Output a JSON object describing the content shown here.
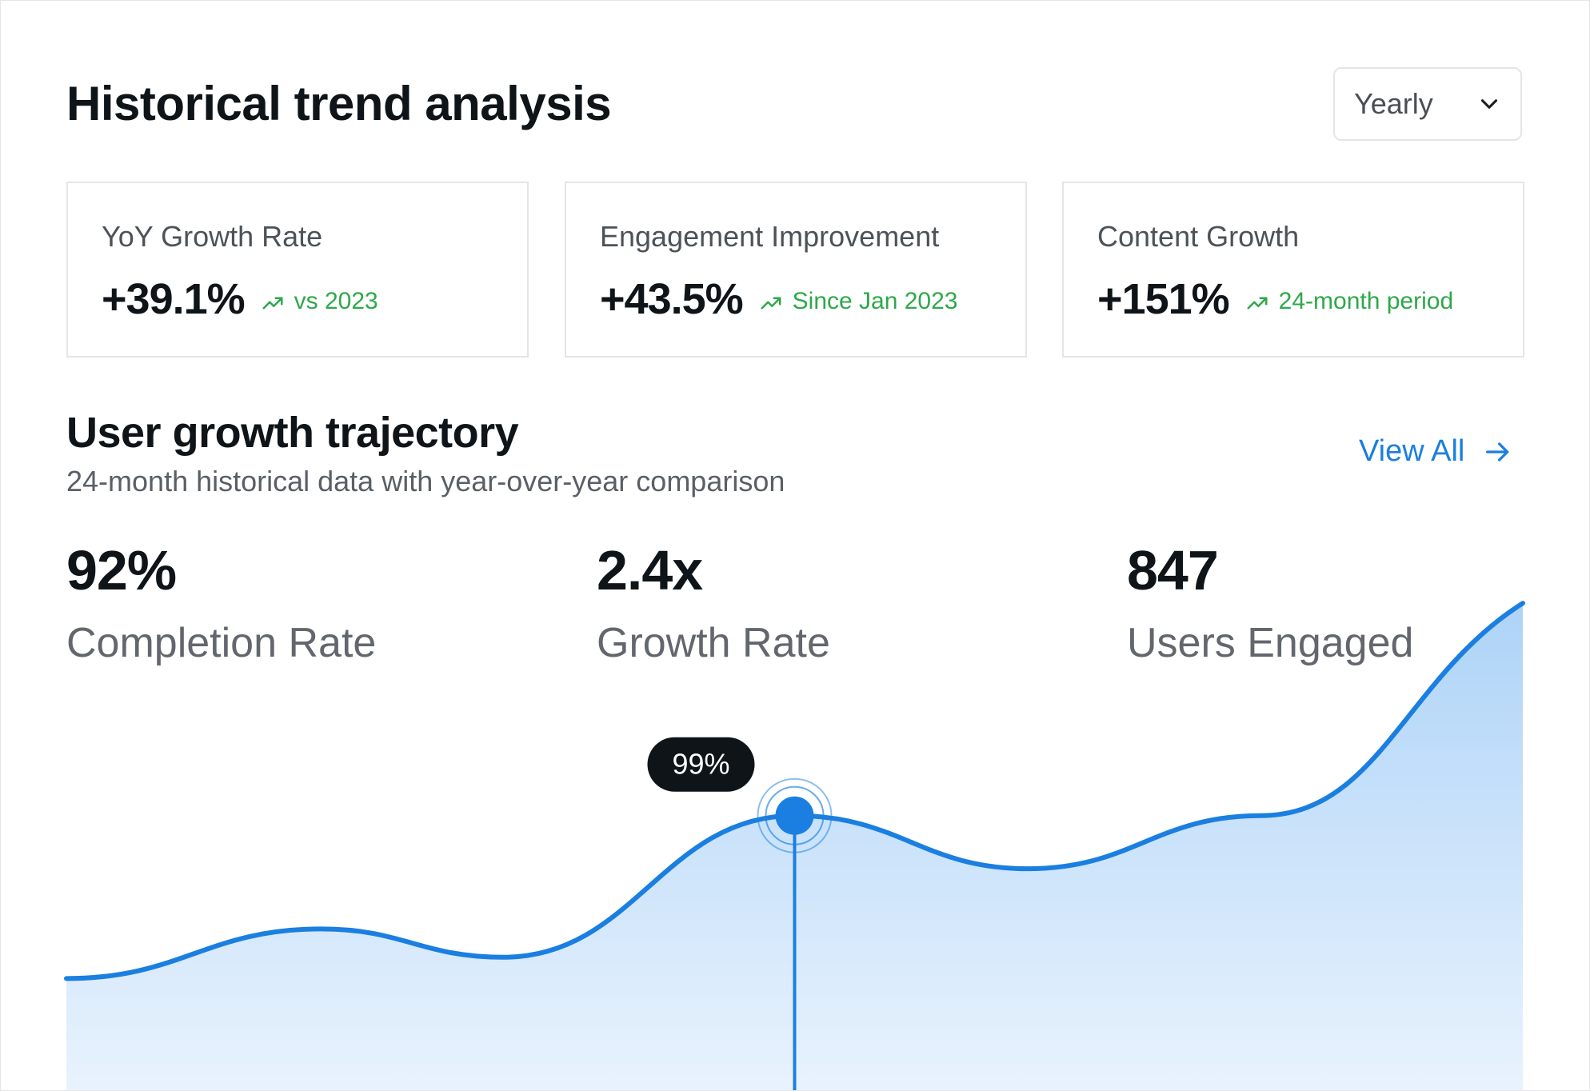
{
  "header": {
    "title": "Historical trend analysis",
    "period_select": {
      "value": "Yearly",
      "icon": "chevron-down-icon"
    }
  },
  "stat_cards": [
    {
      "label": "YoY Growth Rate",
      "value": "+39.1%",
      "trend": "vs 2023",
      "trend_icon": "trending-up-icon"
    },
    {
      "label": "Engagement Improvement",
      "value": "+43.5%",
      "trend": "Since Jan 2023",
      "trend_icon": "trending-up-icon"
    },
    {
      "label": "Content Growth",
      "value": "+151%",
      "trend": "24-month period",
      "trend_icon": "trending-up-icon"
    }
  ],
  "section": {
    "title": "User growth trajectory",
    "subtitle": "24-month historical data with year-over-year comparison",
    "view_all": "View All",
    "view_all_icon": "arrow-right-icon"
  },
  "metrics": [
    {
      "value": "92%",
      "label": "Completion Rate"
    },
    {
      "value": "2.4x",
      "label": "Growth Rate"
    },
    {
      "value": "847",
      "label": "Users Engaged"
    }
  ],
  "colors": {
    "accent": "#1a7fe0",
    "trend_positive": "#2ea84a",
    "tooltip_bg": "#0f1419"
  },
  "chart_data": {
    "type": "area",
    "x": [
      0,
      0.175,
      0.3,
      0.5,
      0.66,
      0.82,
      1
    ],
    "values": [
      0.32,
      0.46,
      0.38,
      0.78,
      0.63,
      0.78,
      1.38
    ],
    "ylim": [
      0,
      1.5
    ],
    "highlight": {
      "index": 3,
      "label": "99%"
    },
    "grid": false
  }
}
